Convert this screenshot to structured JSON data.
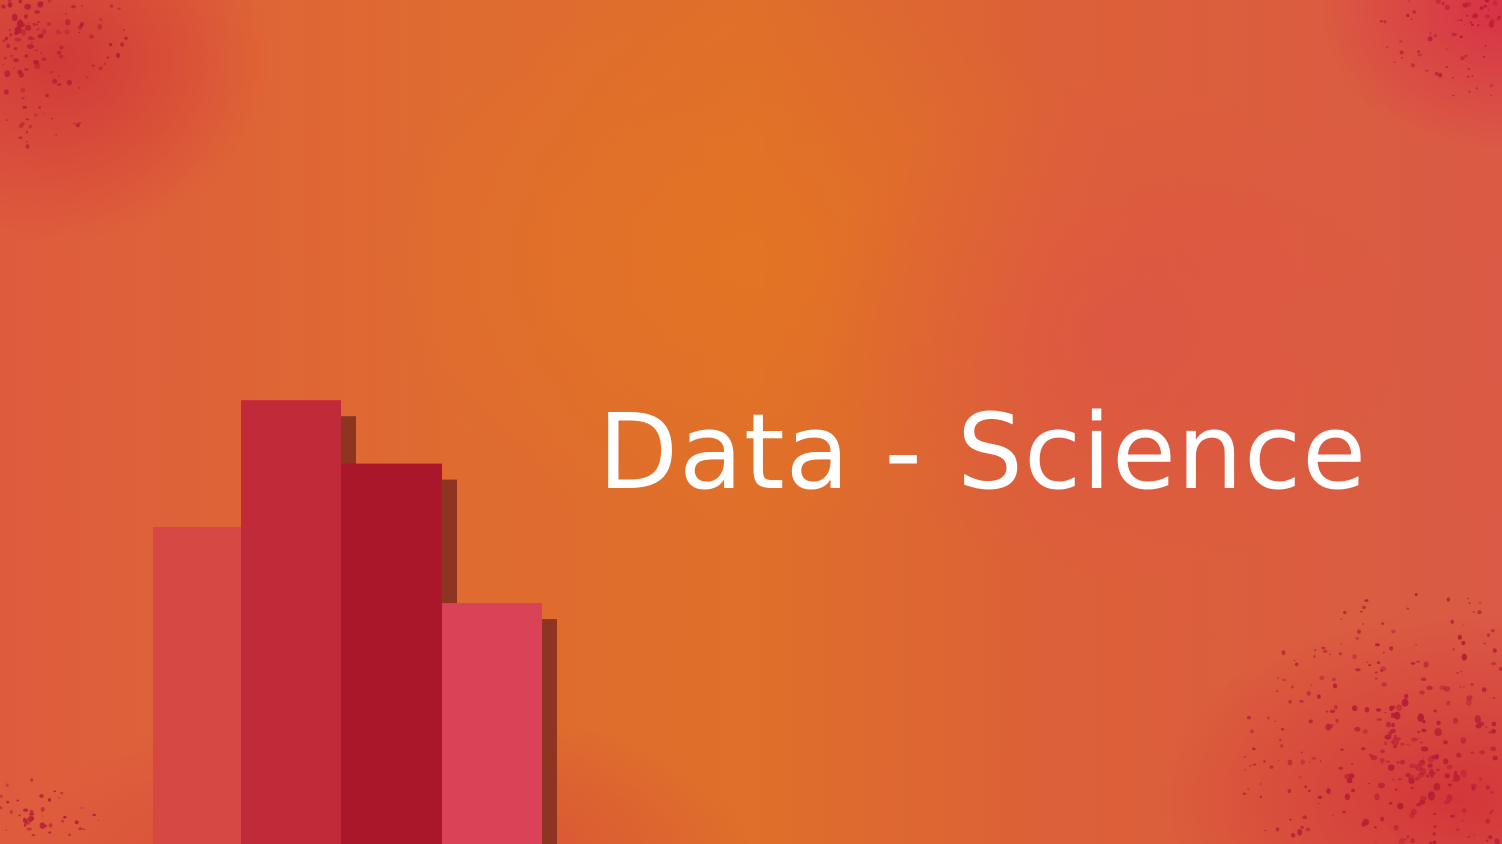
{
  "slide": {
    "title": "Data - Science"
  },
  "graphic": {
    "kind": "decorative-bar-chart",
    "levels": [
      0.5,
      0.7,
      0.6,
      0.38
    ],
    "colors": [
      "#d54843",
      "#c12a38",
      "#aa172b",
      "#da4257"
    ],
    "shadow_color": "#8d3520"
  },
  "colors": {
    "title_text": "#ffffff",
    "background_orange": "#df6f2a",
    "splatter_red": "#b51d34"
  }
}
